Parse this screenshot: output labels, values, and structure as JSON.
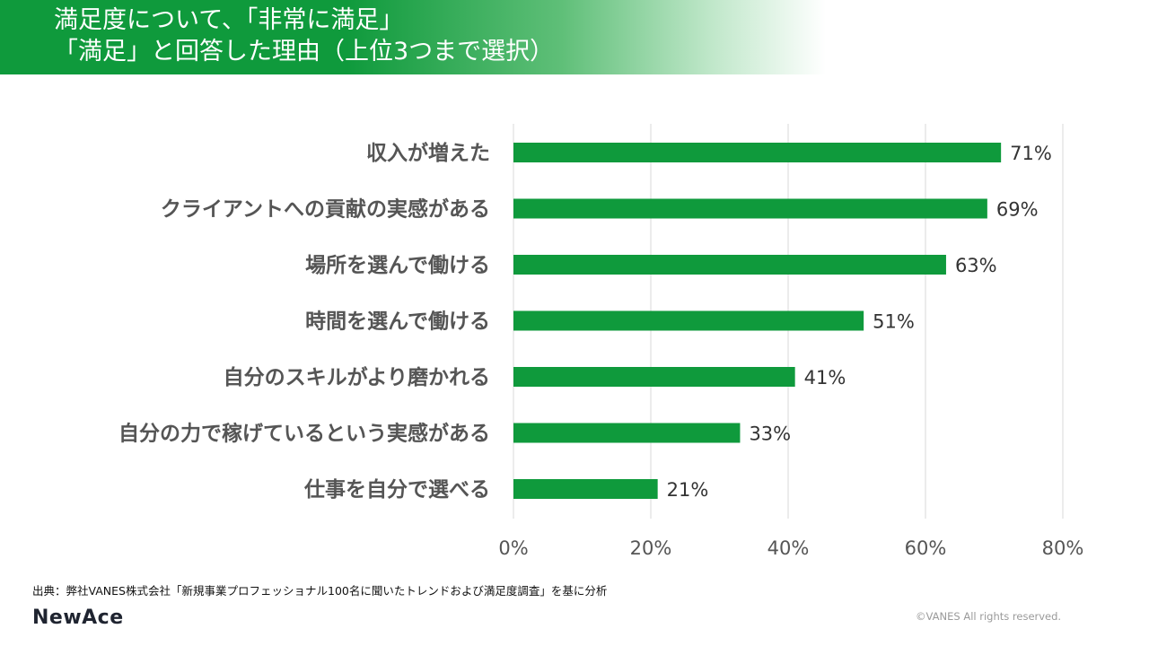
{
  "header": {
    "title_line1": "満足度について、「非常に満足」",
    "title_line2": "「満足」と回答した理由（上位3つまで選択）"
  },
  "chart_data": {
    "type": "bar",
    "orientation": "horizontal",
    "title": "満足度について、「非常に満足」「満足」と回答した理由（上位3つまで選択）",
    "categories": [
      "収入が増えた",
      "クライアントへの貢献の実感がある",
      "場所を選んで働ける",
      "時間を選んで働ける",
      "自分のスキルがより磨かれる",
      "自分の力で稼げているという実感がある",
      "仕事を自分で選べる"
    ],
    "values": [
      71,
      69,
      63,
      51,
      41,
      33,
      21
    ],
    "value_labels": [
      "71%",
      "69%",
      "63%",
      "51%",
      "41%",
      "33%",
      "21%"
    ],
    "xlim": [
      0,
      80
    ],
    "xticks": [
      0,
      20,
      40,
      60,
      80
    ],
    "xtick_labels": [
      "0%",
      "20%",
      "40%",
      "60%",
      "80%"
    ],
    "grid": true,
    "bar_color": "#0f9a3c",
    "grid_color": "#d9d9d9"
  },
  "footer": {
    "source": "出典：弊社VANES株式会社「新規事業プロフェッショナル100名に聞いたトレンドおよび満足度調査」を基に分析",
    "logo_text": "NewAce",
    "copyright": "©VANES All rights reserved."
  },
  "colors": {
    "brand_green": "#0f9a3c",
    "text_gray": "#555555"
  }
}
